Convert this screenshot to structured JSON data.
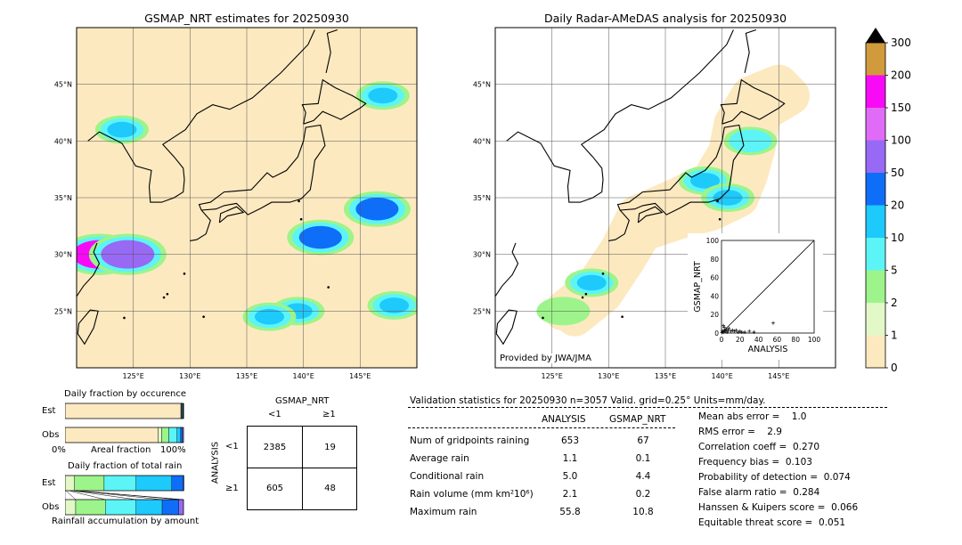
{
  "left_map": {
    "title": "GSMAP_NRT estimates for 20250930",
    "lat_labels": [
      "45°N",
      "40°N",
      "35°N",
      "30°N",
      "25°N"
    ],
    "lon_labels": [
      "125°E",
      "130°E",
      "135°E",
      "140°E",
      "145°E"
    ]
  },
  "right_map": {
    "title": "Daily Radar-AMeDAS analysis for 20250930",
    "lat_labels": [
      "45°N",
      "40°N",
      "35°N",
      "30°N",
      "25°N"
    ],
    "lon_labels": [
      "125°E",
      "130°E",
      "135°E",
      "140°E",
      "145°E"
    ],
    "credit": "Provided by JWA/JMA"
  },
  "colorbar": {
    "levels": [
      "0",
      "1",
      "2",
      "5",
      "10",
      "20",
      "50",
      "100",
      "150",
      "200",
      "300"
    ],
    "colors": [
      "#fde9c0",
      "#e2f8c7",
      "#9df48a",
      "#5cf4f6",
      "#1ec9fb",
      "#0f6ef8",
      "#9869f5",
      "#e06bf6",
      "#f80af6",
      "#d19a3c"
    ]
  },
  "scatter": {
    "xlabel": "ANALYSIS",
    "ylabel": "GSMAP_NRT",
    "ticks": [
      "0",
      "20",
      "40",
      "60",
      "80",
      "100"
    ]
  },
  "occurrence": {
    "title": "Daily fraction by occurence",
    "est_label": "Est",
    "obs_label": "Obs",
    "axis_left": "0%",
    "axis_mid": "Areal fraction",
    "axis_right": "100%"
  },
  "totalrain": {
    "title": "Daily fraction of total rain",
    "est_label": "Est",
    "obs_label": "Obs",
    "footer": "Rainfall accumulation by amount"
  },
  "contingency": {
    "top_title": "GSMAP_NRT",
    "col_lt1": "<1",
    "col_ge1": "≥1",
    "side_title": "ANALYSIS",
    "row_lt1": "<1",
    "row_ge1": "≥1",
    "cells": [
      "2385",
      "19",
      "605",
      "48"
    ]
  },
  "validation": {
    "header": "Validation statistics for 20250930  n=3057 Valid. grid=0.25° Units=mm/day.",
    "col_analysis": "ANALYSIS",
    "col_gsmap": "GSMAP_NRT",
    "rows": [
      {
        "label": "Num of gridpoints raining",
        "analysis": "653",
        "gsmap": "67"
      },
      {
        "label": "Average rain",
        "analysis": "1.1",
        "gsmap": "0.1"
      },
      {
        "label": "Conditional rain",
        "analysis": "5.0",
        "gsmap": "4.4"
      },
      {
        "label": "Rain volume (mm km²10⁶)",
        "analysis": "2.1",
        "gsmap": "0.2"
      },
      {
        "label": "Maximum rain",
        "analysis": "55.8",
        "gsmap": "10.8"
      }
    ],
    "scores": [
      "Mean abs error =    1.0",
      "RMS error =    2.9",
      "Correlation coeff =  0.270",
      "Frequency bias =  0.103",
      "Probability of detection =  0.074",
      "False alarm ratio =  0.284",
      "Hanssen & Kuipers score =  0.066",
      "Equitable threat score =  0.051"
    ]
  },
  "chart_data": [
    {
      "type": "heatmap",
      "title": "GSMAP_NRT estimates for 20250930",
      "lon_range": [
        120,
        150
      ],
      "lat_range": [
        20,
        50
      ],
      "rain_cells": [
        {
          "lon": 146.5,
          "lat": 34,
          "mm": 20
        },
        {
          "lon": 141.5,
          "lat": 31.5,
          "mm": 20
        },
        {
          "lon": 122,
          "lat": 30,
          "mm": 150
        },
        {
          "lon": 124.5,
          "lat": 30,
          "mm": 50
        },
        {
          "lon": 139.5,
          "lat": 25,
          "mm": 10
        },
        {
          "lon": 137,
          "lat": 24.5,
          "mm": 10
        },
        {
          "lon": 148,
          "lat": 25.5,
          "mm": 10
        },
        {
          "lon": 124,
          "lat": 41,
          "mm": 10
        },
        {
          "lon": 147,
          "lat": 44,
          "mm": 10
        }
      ]
    },
    {
      "type": "heatmap",
      "title": "Daily Radar-AMeDAS analysis for 20250930",
      "lon_range": [
        120,
        150
      ],
      "lat_range": [
        20,
        50
      ],
      "rain_cells": [
        {
          "lon": 138.5,
          "lat": 36.5,
          "mm": 10
        },
        {
          "lon": 140.5,
          "lat": 35,
          "mm": 10
        },
        {
          "lon": 128.5,
          "lat": 27.5,
          "mm": 10
        },
        {
          "lon": 142.5,
          "lat": 40,
          "mm": 5
        },
        {
          "lon": 126,
          "lat": 25,
          "mm": 2
        }
      ]
    },
    {
      "type": "scatter",
      "xlabel": "ANALYSIS",
      "ylabel": "GSMAP_NRT",
      "xlim": [
        0,
        100
      ],
      "ylim": [
        0,
        100
      ],
      "points": [
        [
          0.5,
          0.5
        ],
        [
          1,
          2
        ],
        [
          2,
          1
        ],
        [
          3,
          3
        ],
        [
          4,
          2
        ],
        [
          5,
          4
        ],
        [
          6,
          1
        ],
        [
          7,
          3
        ],
        [
          8,
          5
        ],
        [
          10,
          2
        ],
        [
          12,
          3
        ],
        [
          14,
          2
        ],
        [
          16,
          3
        ],
        [
          18,
          1
        ],
        [
          20,
          2
        ],
        [
          22,
          1
        ],
        [
          25,
          1
        ],
        [
          30,
          2
        ],
        [
          35,
          1
        ],
        [
          2,
          8
        ],
        [
          3,
          6
        ],
        [
          55.8,
          10.8
        ]
      ]
    },
    {
      "type": "bar",
      "title": "Daily fraction by occurence",
      "categories": [
        "Est",
        "Obs"
      ],
      "series": [
        {
          "values": [
            0.978,
            0.786
          ]
        },
        {
          "values": [
            0.002,
            0.03
          ]
        },
        {
          "values": [
            0.004,
            0.06
          ]
        },
        {
          "values": [
            0.006,
            0.07
          ]
        },
        {
          "values": [
            0.005,
            0.03
          ]
        },
        {
          "values": [
            0.003,
            0.015
          ]
        },
        {
          "values": [
            0.002,
            0.009
          ]
        }
      ]
    },
    {
      "type": "bar",
      "title": "Daily fraction of total rain",
      "categories": [
        "Est",
        "Obs"
      ],
      "series": [
        {
          "values": [
            0.0,
            0.0
          ]
        },
        {
          "values": [
            0.08,
            0.09
          ]
        },
        {
          "values": [
            0.25,
            0.25
          ]
        },
        {
          "values": [
            0.27,
            0.26
          ]
        },
        {
          "values": [
            0.3,
            0.22
          ]
        },
        {
          "values": [
            0.1,
            0.14
          ]
        },
        {
          "values": [
            0.0,
            0.04
          ]
        }
      ]
    }
  ]
}
